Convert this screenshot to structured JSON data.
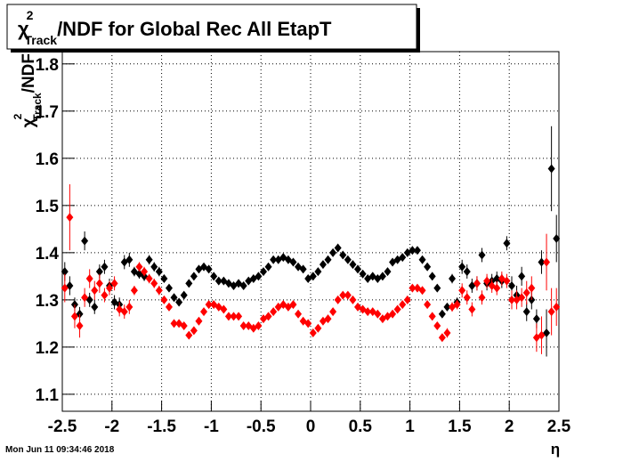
{
  "chart_data": {
    "type": "scatter",
    "title": {
      "symbol": "χ",
      "sup": "2",
      "sub": "Track",
      "rest": "/NDF for Global Rec All EtapT"
    },
    "ylabel": {
      "symbol": "χ",
      "sup": "2",
      "sub": "Track",
      "rest": "/NDF"
    },
    "xlabel": "η",
    "timestamp": "Mon Jun 11 09:34:46 2018",
    "xlim": [
      -2.5,
      2.5
    ],
    "ylim": [
      1.064,
      1.826
    ],
    "xticks": [
      -2.5,
      -2,
      -1.5,
      -1,
      -0.5,
      0,
      0.5,
      1,
      1.5,
      2,
      2.5
    ],
    "yticks": [
      1.1,
      1.2,
      1.3,
      1.4,
      1.5,
      1.6,
      1.7,
      1.8
    ],
    "grid": true,
    "x": [
      -2.475,
      -2.425,
      -2.375,
      -2.325,
      -2.275,
      -2.225,
      -2.175,
      -2.125,
      -2.075,
      -2.025,
      -1.975,
      -1.925,
      -1.875,
      -1.825,
      -1.775,
      -1.725,
      -1.675,
      -1.625,
      -1.575,
      -1.525,
      -1.475,
      -1.425,
      -1.375,
      -1.325,
      -1.275,
      -1.225,
      -1.175,
      -1.125,
      -1.075,
      -1.025,
      -0.975,
      -0.925,
      -0.875,
      -0.825,
      -0.775,
      -0.725,
      -0.675,
      -0.625,
      -0.575,
      -0.525,
      -0.475,
      -0.425,
      -0.375,
      -0.325,
      -0.275,
      -0.225,
      -0.175,
      -0.125,
      -0.075,
      -0.025,
      0.025,
      0.075,
      0.125,
      0.175,
      0.225,
      0.275,
      0.325,
      0.375,
      0.425,
      0.475,
      0.525,
      0.575,
      0.625,
      0.675,
      0.725,
      0.775,
      0.825,
      0.875,
      0.925,
      0.975,
      1.025,
      1.075,
      1.125,
      1.175,
      1.225,
      1.275,
      1.325,
      1.375,
      1.425,
      1.475,
      1.525,
      1.575,
      1.625,
      1.675,
      1.725,
      1.775,
      1.825,
      1.875,
      1.925,
      1.975,
      2.025,
      2.075,
      2.125,
      2.175,
      2.225,
      2.275,
      2.325,
      2.375,
      2.425,
      2.475
    ],
    "series": [
      {
        "color": "#000000",
        "values": [
          1.36,
          1.33,
          1.29,
          1.27,
          1.425,
          1.3,
          1.285,
          1.36,
          1.37,
          1.33,
          1.295,
          1.29,
          1.38,
          1.385,
          1.36,
          1.355,
          1.35,
          1.385,
          1.37,
          1.36,
          1.345,
          1.325,
          1.305,
          1.295,
          1.31,
          1.335,
          1.35,
          1.365,
          1.37,
          1.365,
          1.35,
          1.34,
          1.34,
          1.335,
          1.33,
          1.335,
          1.33,
          1.34,
          1.345,
          1.35,
          1.36,
          1.37,
          1.385,
          1.385,
          1.39,
          1.385,
          1.38,
          1.37,
          1.365,
          1.345,
          1.35,
          1.36,
          1.375,
          1.385,
          1.4,
          1.41,
          1.395,
          1.385,
          1.375,
          1.365,
          1.355,
          1.345,
          1.35,
          1.345,
          1.35,
          1.36,
          1.38,
          1.385,
          1.39,
          1.4,
          1.405,
          1.405,
          1.385,
          1.37,
          1.35,
          1.325,
          1.27,
          1.285,
          1.345,
          1.295,
          1.37,
          1.36,
          1.33,
          1.335,
          1.395,
          1.335,
          1.34,
          1.345,
          1.34,
          1.42,
          1.33,
          1.31,
          1.35,
          1.275,
          1.3,
          1.26,
          1.38,
          1.23,
          1.578,
          1.43
        ],
        "errors": [
          0.02,
          0.02,
          0.015,
          0.015,
          0.02,
          0.015,
          0.015,
          0.015,
          0.015,
          0.015,
          0.015,
          0.015,
          0.015,
          0.015,
          0.01,
          0.01,
          0.01,
          0.01,
          0.01,
          0.01,
          0.005,
          0.005,
          0.005,
          0.005,
          0.005,
          0.005,
          0.005,
          0.005,
          0.005,
          0.005,
          0.005,
          0.005,
          0.005,
          0.005,
          0.005,
          0.005,
          0.005,
          0.005,
          0.005,
          0.005,
          0.005,
          0.005,
          0.005,
          0.005,
          0.005,
          0.005,
          0.005,
          0.005,
          0.005,
          0.005,
          0.005,
          0.005,
          0.005,
          0.005,
          0.005,
          0.005,
          0.005,
          0.005,
          0.005,
          0.005,
          0.005,
          0.005,
          0.005,
          0.005,
          0.005,
          0.005,
          0.005,
          0.005,
          0.005,
          0.005,
          0.005,
          0.005,
          0.005,
          0.005,
          0.005,
          0.005,
          0.005,
          0.005,
          0.01,
          0.01,
          0.015,
          0.015,
          0.015,
          0.015,
          0.015,
          0.015,
          0.015,
          0.015,
          0.015,
          0.015,
          0.02,
          0.02,
          0.02,
          0.02,
          0.02,
          0.02,
          0.025,
          0.05,
          0.09,
          0.05
        ]
      },
      {
        "color": "#ff0000",
        "values": [
          1.325,
          1.475,
          1.265,
          1.245,
          1.305,
          1.345,
          1.32,
          1.335,
          1.31,
          1.325,
          1.335,
          1.28,
          1.275,
          1.285,
          1.32,
          1.37,
          1.36,
          1.345,
          1.335,
          1.32,
          1.3,
          1.285,
          1.25,
          1.25,
          1.245,
          1.225,
          1.235,
          1.255,
          1.275,
          1.29,
          1.29,
          1.285,
          1.28,
          1.265,
          1.265,
          1.265,
          1.245,
          1.245,
          1.24,
          1.245,
          1.26,
          1.265,
          1.275,
          1.285,
          1.29,
          1.285,
          1.29,
          1.27,
          1.255,
          1.25,
          1.23,
          1.24,
          1.255,
          1.26,
          1.275,
          1.3,
          1.31,
          1.31,
          1.3,
          1.285,
          1.28,
          1.275,
          1.275,
          1.27,
          1.26,
          1.265,
          1.27,
          1.28,
          1.29,
          1.3,
          1.325,
          1.325,
          1.32,
          1.29,
          1.265,
          1.245,
          1.22,
          1.23,
          1.285,
          1.29,
          1.32,
          1.305,
          1.28,
          1.335,
          1.305,
          1.34,
          1.33,
          1.325,
          1.345,
          1.34,
          1.3,
          1.3,
          1.305,
          1.315,
          1.325,
          1.22,
          1.225,
          1.38,
          1.275,
          1.285
        ],
        "errors": [
          0.03,
          0.07,
          0.025,
          0.025,
          0.02,
          0.02,
          0.02,
          0.02,
          0.015,
          0.015,
          0.015,
          0.015,
          0.015,
          0.015,
          0.01,
          0.01,
          0.01,
          0.01,
          0.01,
          0.01,
          0.005,
          0.005,
          0.005,
          0.005,
          0.005,
          0.005,
          0.005,
          0.005,
          0.005,
          0.005,
          0.005,
          0.005,
          0.005,
          0.005,
          0.005,
          0.005,
          0.005,
          0.005,
          0.005,
          0.005,
          0.005,
          0.005,
          0.005,
          0.005,
          0.005,
          0.005,
          0.005,
          0.005,
          0.005,
          0.005,
          0.005,
          0.005,
          0.005,
          0.005,
          0.005,
          0.005,
          0.005,
          0.005,
          0.005,
          0.005,
          0.005,
          0.005,
          0.005,
          0.005,
          0.005,
          0.005,
          0.005,
          0.005,
          0.005,
          0.005,
          0.005,
          0.005,
          0.005,
          0.005,
          0.005,
          0.005,
          0.005,
          0.01,
          0.01,
          0.01,
          0.015,
          0.015,
          0.015,
          0.015,
          0.015,
          0.015,
          0.015,
          0.015,
          0.015,
          0.015,
          0.02,
          0.02,
          0.02,
          0.025,
          0.025,
          0.03,
          0.04,
          0.06,
          0.05,
          0.04
        ]
      }
    ]
  }
}
